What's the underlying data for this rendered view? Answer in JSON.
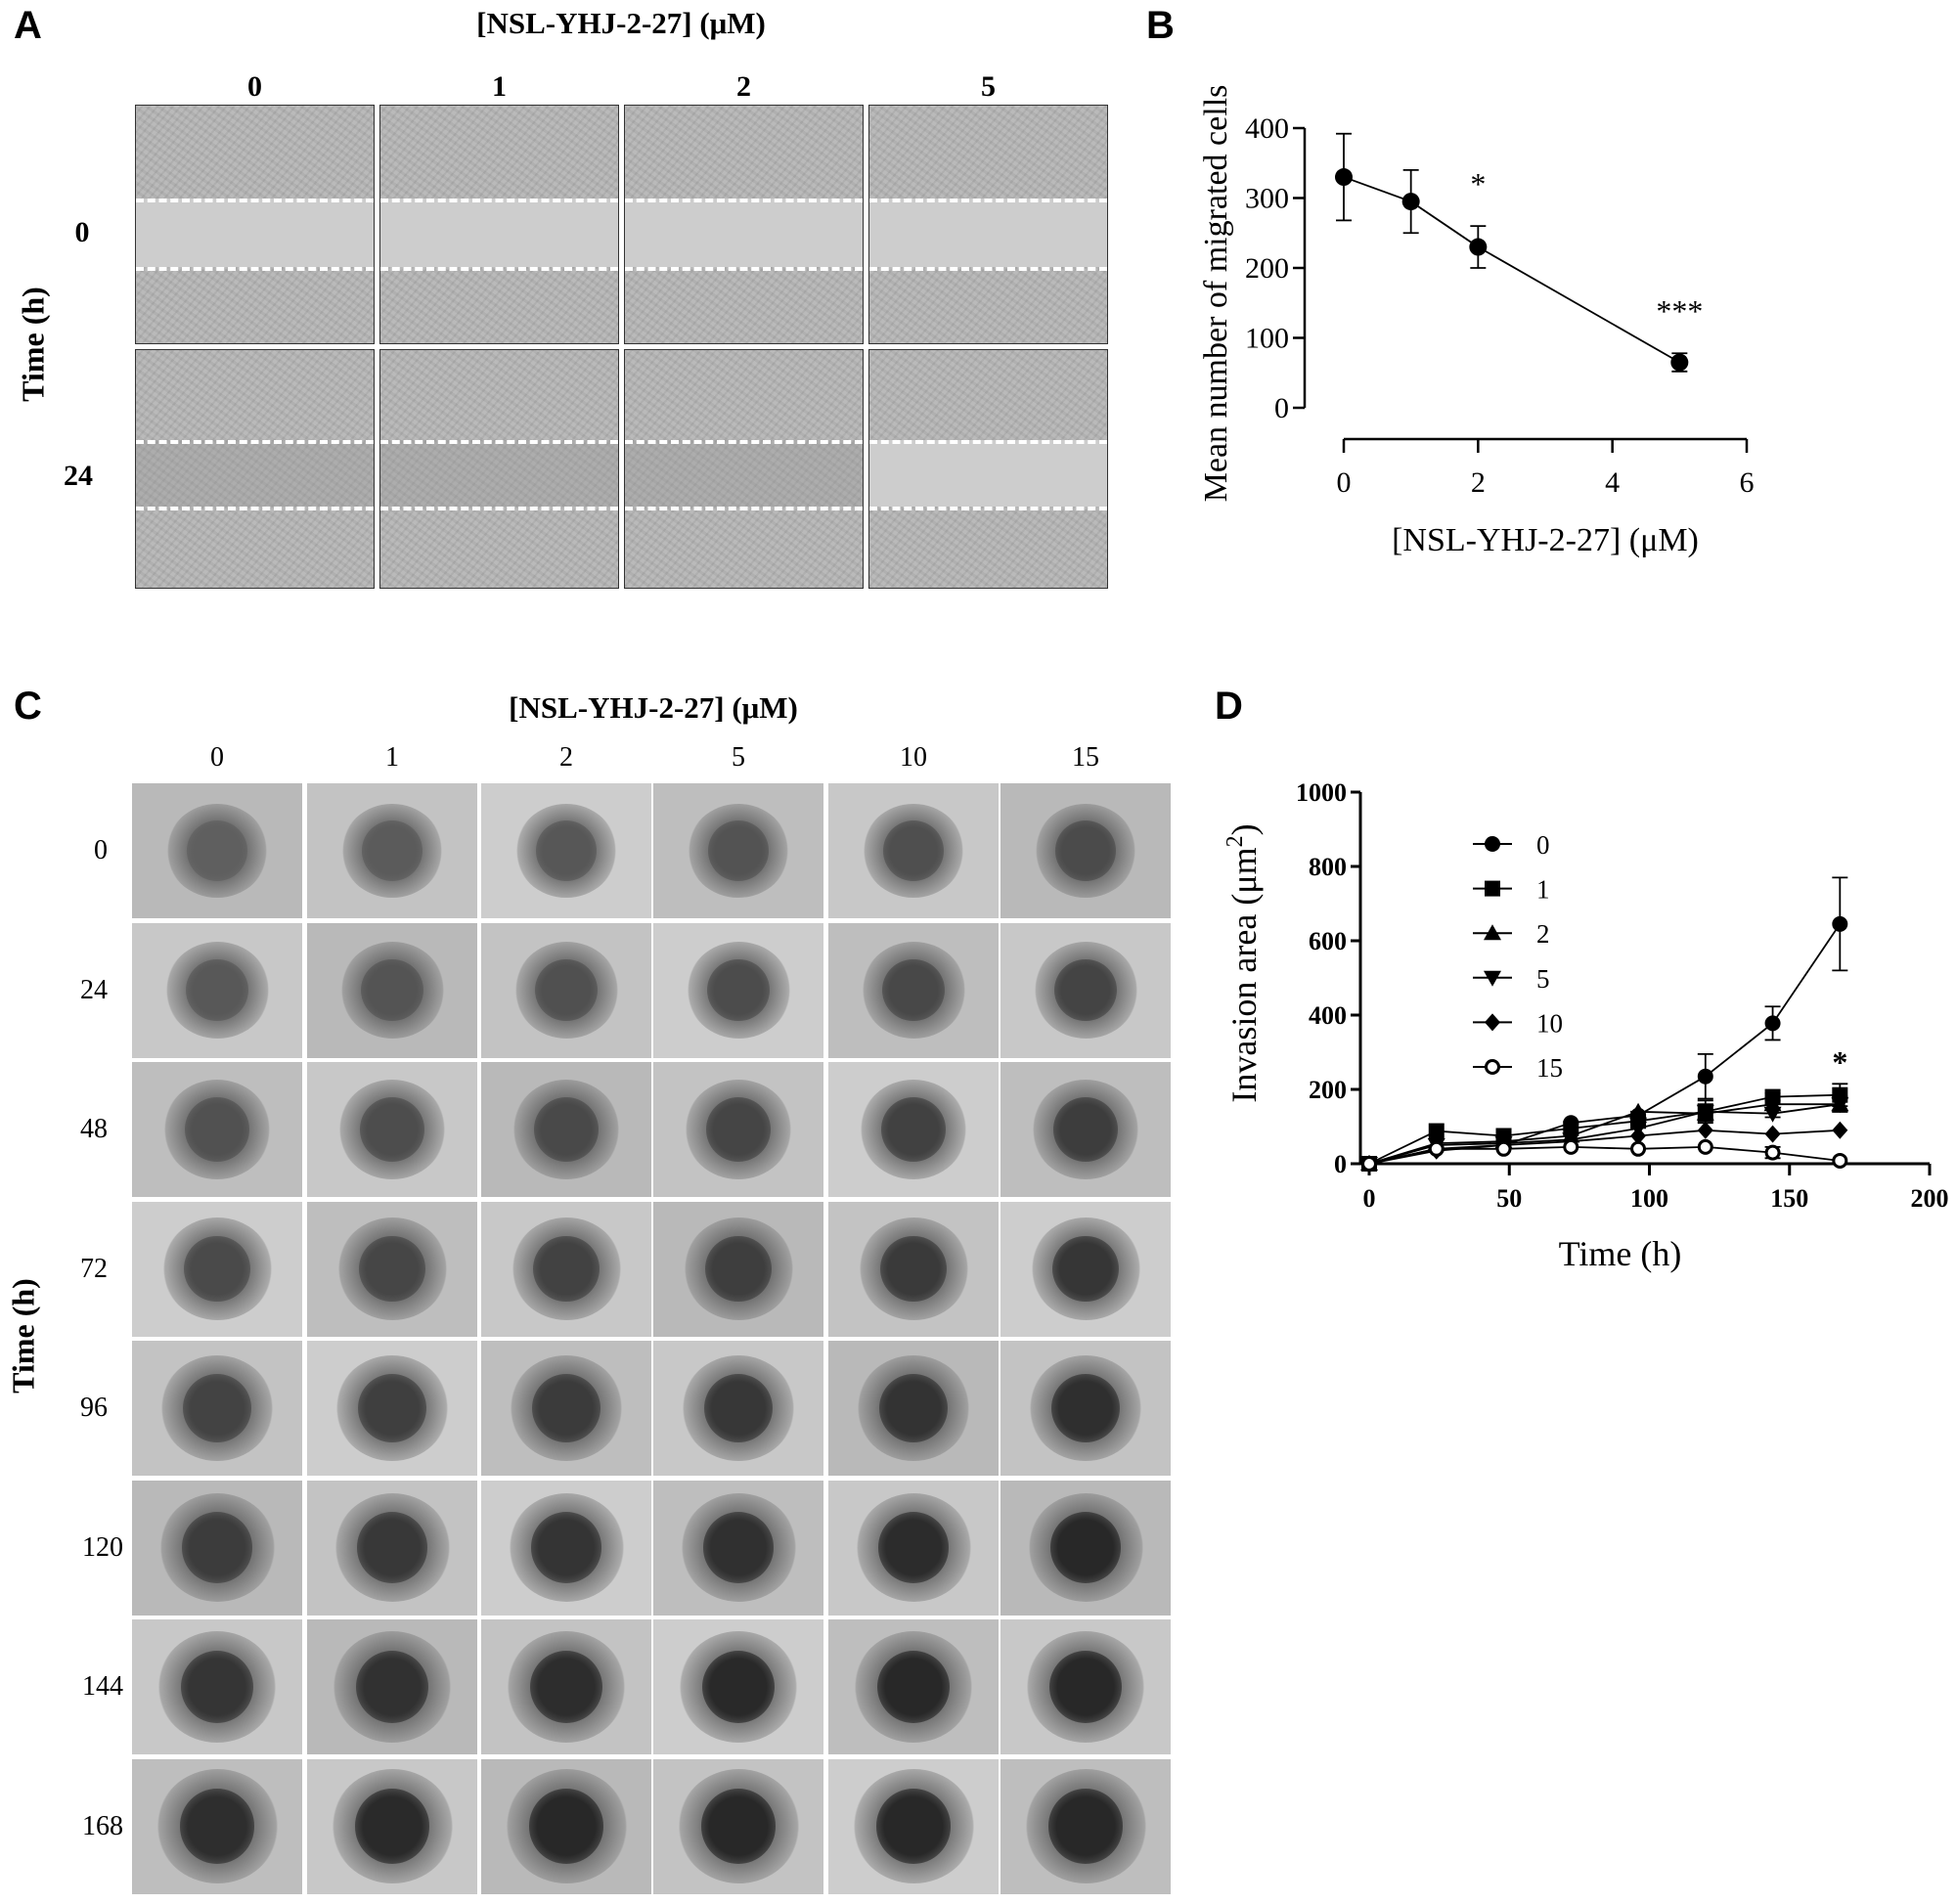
{
  "panels": {
    "A": {
      "label": "A",
      "title": "[NSL-YHJ-2-27] (μM)",
      "columns": [
        "0",
        "1",
        "2",
        "5"
      ],
      "row_axis_label": "Time (h)",
      "rows": [
        "0",
        "24"
      ]
    },
    "B": {
      "label": "B"
    },
    "C": {
      "label": "C",
      "title": "[NSL-YHJ-2-27] (μM)",
      "columns": [
        "0",
        "1",
        "2",
        "5",
        "10",
        "15"
      ],
      "row_axis_label": "Time (h)",
      "rows": [
        "0",
        "24",
        "48",
        "72",
        "96",
        "120",
        "144",
        "168"
      ]
    },
    "D": {
      "label": "D"
    }
  },
  "chart_data": [
    {
      "panel": "B",
      "type": "line",
      "title": "",
      "xlabel": "[NSL-YHJ-2-27] (μM)",
      "ylabel": "Mean number of migrated cells",
      "xlim": [
        0,
        6
      ],
      "ylim": [
        0,
        400
      ],
      "xticks": [
        "0",
        "2",
        "4",
        "6"
      ],
      "yticks": [
        "0",
        "100",
        "200",
        "300",
        "400"
      ],
      "grid": false,
      "series": [
        {
          "name": "migrated cells",
          "x": [
            0,
            1,
            2,
            5
          ],
          "values": [
            330,
            295,
            230,
            65
          ],
          "error": [
            62,
            45,
            30,
            13
          ]
        }
      ],
      "annotations": [
        {
          "x": 2,
          "text": "*"
        },
        {
          "x": 5,
          "text": "***"
        }
      ]
    },
    {
      "panel": "D",
      "type": "line",
      "title": "",
      "xlabel": "Time (h)",
      "ylabel": "Invasion area (μm",
      "ylabel_sup": "2",
      "ylabel_end": ")",
      "xlim": [
        0,
        200
      ],
      "ylim": [
        0,
        1000
      ],
      "xticks": [
        "0",
        "50",
        "100",
        "150",
        "200"
      ],
      "yticks": [
        "0",
        "200",
        "400",
        "600",
        "800",
        "1000"
      ],
      "grid": false,
      "legend_position": "top-left",
      "x": [
        0,
        24,
        48,
        72,
        96,
        120,
        144,
        168
      ],
      "series": [
        {
          "name": "0",
          "marker": "circle",
          "values": [
            0,
            40,
            50,
            110,
            130,
            235,
            378,
            645
          ],
          "error": [
            0,
            5,
            5,
            8,
            10,
            60,
            45,
            125
          ]
        },
        {
          "name": "1",
          "marker": "square",
          "values": [
            0,
            88,
            75,
            95,
            115,
            140,
            180,
            185
          ],
          "error": [
            0,
            5,
            5,
            8,
            10,
            30,
            10,
            30
          ]
        },
        {
          "name": "2",
          "marker": "triangle-up",
          "values": [
            0,
            55,
            60,
            75,
            140,
            135,
            160,
            160
          ],
          "error": [
            0,
            5,
            5,
            5,
            8,
            20,
            10,
            20
          ]
        },
        {
          "name": "5",
          "marker": "triangle-down",
          "values": [
            0,
            50,
            55,
            65,
            95,
            140,
            135,
            160
          ],
          "error": [
            0,
            5,
            5,
            5,
            8,
            20,
            10,
            20
          ]
        },
        {
          "name": "10",
          "marker": "diamond",
          "values": [
            0,
            35,
            50,
            60,
            75,
            90,
            80,
            90
          ],
          "error": [
            0,
            3,
            3,
            5,
            5,
            8,
            5,
            5
          ]
        },
        {
          "name": "15",
          "marker": "circle-open",
          "values": [
            0,
            40,
            40,
            45,
            40,
            45,
            30,
            8
          ],
          "error": [
            0,
            3,
            3,
            5,
            5,
            5,
            15,
            5
          ]
        }
      ],
      "annotations": [
        {
          "x": 168,
          "text": "*"
        }
      ]
    }
  ]
}
